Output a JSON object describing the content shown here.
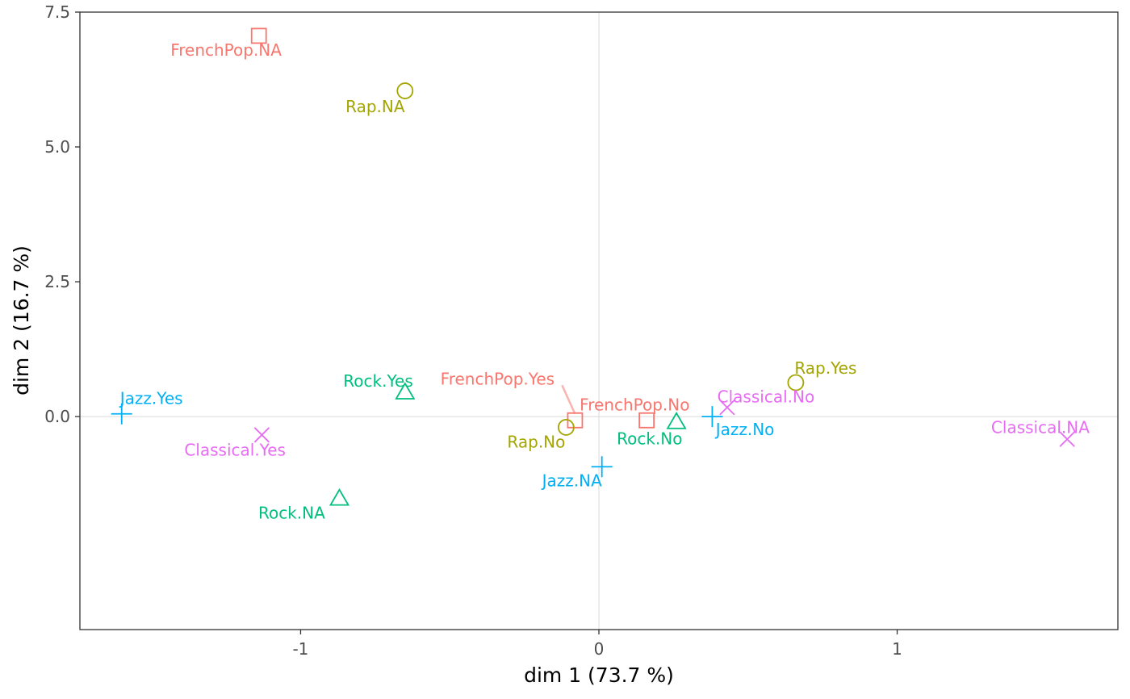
{
  "chart_data": {
    "type": "scatter",
    "xlabel": "dim 1 (73.7 %)",
    "ylabel": "dim 2 (16.7 %)",
    "xlim": [
      -1.74,
      1.74
    ],
    "ylim": [
      -3.95,
      7.5
    ],
    "x_ticks": [
      {
        "value": -1,
        "label": "-1"
      },
      {
        "value": 0,
        "label": "0"
      },
      {
        "value": 1,
        "label": "1"
      }
    ],
    "y_ticks": [
      {
        "value": 0,
        "label": "0.0"
      },
      {
        "value": 2.5,
        "label": "2.5"
      },
      {
        "value": 5,
        "label": "5.0"
      },
      {
        "value": 7.5,
        "label": "7.5"
      }
    ],
    "grid": false,
    "reference_lines": {
      "x": 0,
      "y": 0
    },
    "groups": [
      {
        "name": "FrenchPop",
        "color": "#F8766D",
        "shape": "square"
      },
      {
        "name": "Rap",
        "color": "#A3A500",
        "shape": "circle"
      },
      {
        "name": "Rock",
        "color": "#00BF7D",
        "shape": "triangle"
      },
      {
        "name": "Jazz",
        "color": "#00B0F6",
        "shape": "plus"
      },
      {
        "name": "Classical",
        "color": "#E76BF3",
        "shape": "cross"
      }
    ],
    "points": [
      {
        "label": "FrenchPop.NA",
        "group": "FrenchPop",
        "x": -1.14,
        "y": 7.06,
        "label_x": -1.25,
        "label_y": 6.8
      },
      {
        "label": "FrenchPop.Yes",
        "group": "FrenchPop",
        "x": -0.08,
        "y": -0.07,
        "label_x": -0.34,
        "label_y": 0.7,
        "leader": true
      },
      {
        "label": "FrenchPop.No",
        "group": "FrenchPop",
        "x": 0.16,
        "y": -0.07,
        "label_x": 0.12,
        "label_y": 0.22
      },
      {
        "label": "Rap.NA",
        "group": "Rap",
        "x": -0.65,
        "y": 6.04,
        "label_x": -0.75,
        "label_y": 5.75
      },
      {
        "label": "Rap.Yes",
        "group": "Rap",
        "x": 0.66,
        "y": 0.63,
        "label_x": 0.76,
        "label_y": 0.9
      },
      {
        "label": "Rap.No",
        "group": "Rap",
        "x": -0.11,
        "y": -0.2,
        "label_x": -0.21,
        "label_y": -0.47
      },
      {
        "label": "Rock.Yes",
        "group": "Rock",
        "x": -0.65,
        "y": 0.45,
        "label_x": -0.74,
        "label_y": 0.66
      },
      {
        "label": "Rock.No",
        "group": "Rock",
        "x": 0.26,
        "y": -0.1,
        "label_x": 0.17,
        "label_y": -0.41
      },
      {
        "label": "Rock.NA",
        "group": "Rock",
        "x": -0.87,
        "y": -1.52,
        "label_x": -1.03,
        "label_y": -1.79
      },
      {
        "label": "Jazz.Yes",
        "group": "Jazz",
        "x": -1.6,
        "y": 0.05,
        "label_x": -1.5,
        "label_y": 0.34
      },
      {
        "label": "Jazz.No",
        "group": "Jazz",
        "x": 0.38,
        "y": 0.0,
        "label_x": 0.49,
        "label_y": -0.24
      },
      {
        "label": "Jazz.NA",
        "group": "Jazz",
        "x": 0.01,
        "y": -0.93,
        "label_x": -0.09,
        "label_y": -1.19
      },
      {
        "label": "Classical.No",
        "group": "Classical",
        "x": 0.43,
        "y": 0.17,
        "label_x": 0.56,
        "label_y": 0.37
      },
      {
        "label": "Classical.Yes",
        "group": "Classical",
        "x": -1.13,
        "y": -0.34,
        "label_x": -1.22,
        "label_y": -0.62
      },
      {
        "label": "Classical.NA",
        "group": "Classical",
        "x": 1.57,
        "y": -0.42,
        "label_x": 1.48,
        "label_y": -0.2
      }
    ]
  }
}
